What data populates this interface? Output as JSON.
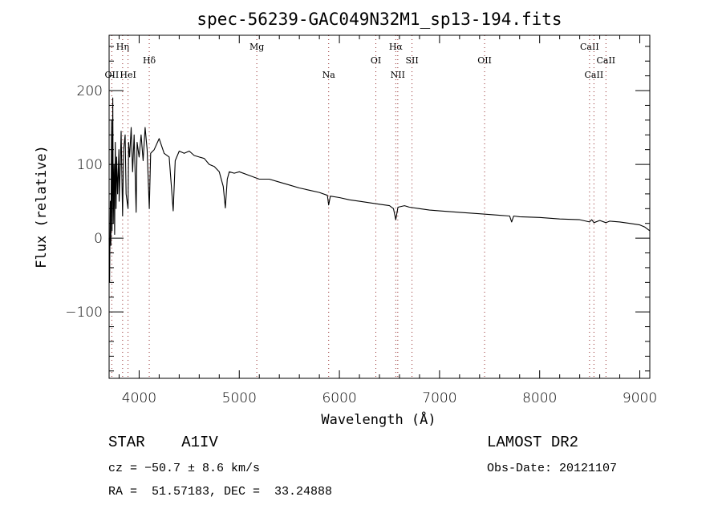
{
  "chart_data": {
    "type": "line",
    "title": "spec-56239-GAC049N32M1_sp13-194.fits",
    "xlabel": "Wavelength (Å)",
    "ylabel": "Flux (relative)",
    "xlim": [
      3700,
      9100
    ],
    "ylim": [
      -190,
      275
    ],
    "xticks": [
      4000,
      5000,
      6000,
      7000,
      8000,
      9000
    ],
    "xtick_labels": [
      "4000",
      "5000",
      "6000",
      "7000",
      "8000",
      "9000"
    ],
    "yticks": [
      -100,
      0,
      100,
      200
    ],
    "ytick_labels": [
      "−100",
      "0",
      "100",
      "200"
    ],
    "grid": false,
    "series": [
      {
        "name": "spectrum",
        "color": "#000000",
        "x": [
          3700,
          3705,
          3712,
          3718,
          3725,
          3730,
          3737,
          3742,
          3750,
          3755,
          3762,
          3770,
          3775,
          3785,
          3798,
          3800,
          3812,
          3820,
          3835,
          3845,
          3860,
          3870,
          3889,
          3895,
          3905,
          3920,
          3935,
          3950,
          3970,
          3980,
          4000,
          4020,
          4040,
          4060,
          4080,
          4101,
          4115,
          4150,
          4200,
          4250,
          4300,
          4340,
          4360,
          4400,
          4450,
          4500,
          4550,
          4600,
          4650,
          4700,
          4750,
          4800,
          4840,
          4861,
          4880,
          4900,
          4950,
          5000,
          5100,
          5200,
          5300,
          5400,
          5500,
          5600,
          5700,
          5800,
          5880,
          5893,
          5910,
          6000,
          6100,
          6200,
          6300,
          6400,
          6500,
          6540,
          6563,
          6585,
          6650,
          6700,
          6800,
          6900,
          7000,
          7200,
          7400,
          7600,
          7700,
          7720,
          7740,
          7800,
          8000,
          8200,
          8400,
          8498,
          8520,
          8542,
          8600,
          8662,
          8700,
          8800,
          8900,
          9000,
          9050,
          9100
        ],
        "y": [
          0,
          -60,
          50,
          -10,
          160,
          10,
          190,
          20,
          100,
          5,
          130,
          40,
          110,
          60,
          120,
          50,
          100,
          145,
          30,
          120,
          140,
          60,
          40,
          130,
          110,
          150,
          90,
          140,
          35,
          130,
          110,
          140,
          105,
          150,
          120,
          40,
          115,
          120,
          135,
          115,
          110,
          37,
          105,
          118,
          115,
          118,
          112,
          110,
          108,
          100,
          97,
          90,
          70,
          41,
          80,
          90,
          88,
          90,
          85,
          80,
          80,
          76,
          72,
          68,
          65,
          62,
          58,
          45,
          57,
          55,
          52,
          50,
          48,
          46,
          44,
          40,
          25,
          42,
          44,
          42,
          40,
          38,
          37,
          35,
          33,
          31,
          30,
          22,
          30,
          29,
          28,
          26,
          25,
          22,
          25,
          21,
          24,
          21,
          23,
          22,
          20,
          18,
          15,
          10
        ]
      }
    ],
    "line_markers": {
      "color": "#8b1a1a",
      "lines": [
        {
          "label": "OII",
          "wavelength": 3727,
          "row": 3
        },
        {
          "label": "Hη",
          "wavelength": 3835,
          "row": 1
        },
        {
          "label": "HeI",
          "wavelength": 3889,
          "row": 3
        },
        {
          "label": "Hδ",
          "wavelength": 4101,
          "row": 2
        },
        {
          "label": "Mg",
          "wavelength": 5175,
          "row": 1
        },
        {
          "label": "Na",
          "wavelength": 5893,
          "row": 3
        },
        {
          "label": "OI",
          "wavelength": 6364,
          "row": 2
        },
        {
          "label": "Hα",
          "wavelength": 6563,
          "row": 1
        },
        {
          "label": "NII",
          "wavelength": 6583,
          "row": 3
        },
        {
          "label": "SII",
          "wavelength": 6725,
          "row": 2
        },
        {
          "label": "OII",
          "wavelength": 7450,
          "row": 2
        },
        {
          "label": "CaII",
          "wavelength": 8498,
          "row": 1
        },
        {
          "label": "CaII",
          "wavelength": 8542,
          "row": 3
        },
        {
          "label": "CaII",
          "wavelength": 8662,
          "row": 2
        }
      ]
    }
  },
  "info": {
    "class_label": "STAR",
    "subclass": "A1IV",
    "redshift_text": "cz = −50.7 ± 8.6 km/s",
    "coords_text": "RA =  51.57183, DEC =  33.24888",
    "survey": "LAMOST DR2",
    "obs_date": "Obs-Date: 20121107"
  }
}
